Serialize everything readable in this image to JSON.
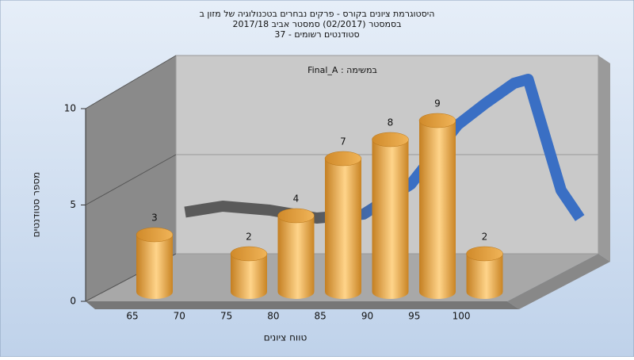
{
  "chart_data": {
    "type": "bar3d",
    "title": [
      "היסטוגרמת ציונים בקורס - פרקים נבחרים בטכנולוגיה של מזון ב",
      "בסמסטר  (02/2017)  סמסטר אביב 2017/18",
      "סטודנטים רשומים - 37"
    ],
    "annotation": "Final_A : במשימה",
    "x_label": "טווח ציונים",
    "y_label": "מספר סטודנטים",
    "categories": [
      "65",
      "70",
      "75",
      "80",
      "85",
      "90",
      "95",
      "100"
    ],
    "values": [
      3,
      null,
      2,
      4,
      7,
      8,
      9,
      2
    ],
    "color": "#e8a643",
    "curve": {
      "x": [
        61,
        65,
        70,
        75,
        80,
        85,
        90,
        93,
        96,
        97.5,
        101,
        103
      ],
      "values": [
        2.1,
        2.4,
        2.2,
        1.8,
        2.0,
        3.5,
        6.5,
        7.6,
        8.6,
        8.8,
        3.2,
        1.8
      ],
      "color": "#3a6fc4"
    },
    "ylim": [
      0,
      10
    ],
    "yticks": [
      0,
      5,
      10
    ]
  }
}
